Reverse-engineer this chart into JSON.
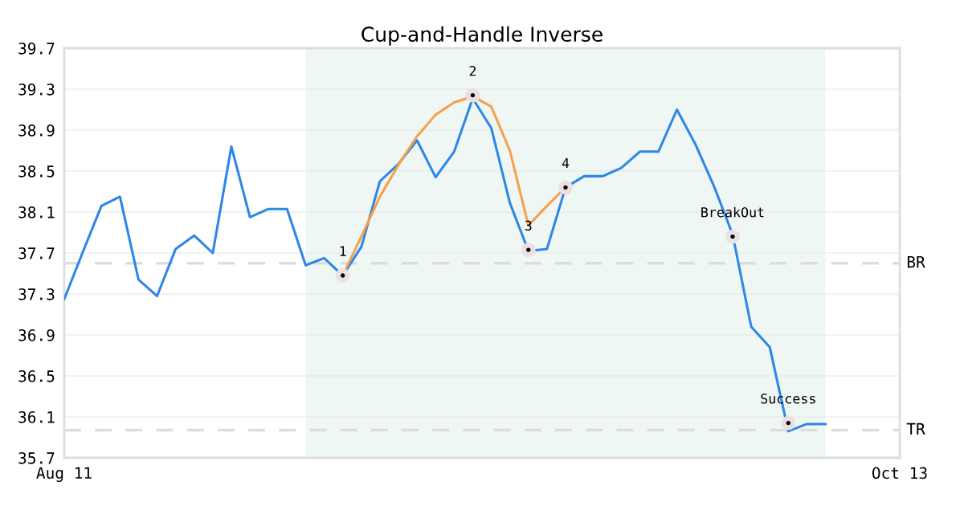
{
  "chart_data": {
    "type": "line",
    "title": "Cup-and-Handle Inverse",
    "categories": [
      "Aug 11",
      null,
      null,
      null,
      null,
      null,
      null,
      null,
      null,
      null,
      null,
      null,
      null,
      null,
      null,
      null,
      null,
      null,
      null,
      null,
      null,
      null,
      null,
      null,
      null,
      null,
      null,
      null,
      null,
      null,
      null,
      null,
      null,
      null,
      null,
      null,
      null,
      null,
      null,
      null,
      null,
      null,
      null,
      null,
      null,
      "Oct 13"
    ],
    "series": [
      {
        "color": "#2e86e6",
        "values": [
          37.25,
          37.71,
          38.16,
          38.25,
          37.44,
          37.28,
          37.74,
          37.87,
          37.7,
          38.74,
          38.05,
          38.13,
          38.13,
          37.58,
          37.65,
          37.48,
          37.76,
          38.4,
          38.57,
          38.8,
          38.44,
          38.69,
          39.21,
          38.92,
          38.19,
          37.72,
          37.74,
          38.34,
          38.45,
          38.45,
          38.53,
          38.69,
          38.69,
          39.1,
          38.76,
          38.35,
          37.88,
          36.98,
          36.78,
          35.96,
          36.03,
          36.03,
          null,
          null,
          null,
          null
        ]
      },
      {
        "color": "#f7a04b",
        "values": [
          null,
          null,
          null,
          null,
          null,
          null,
          null,
          null,
          null,
          null,
          null,
          null,
          null,
          null,
          null,
          37.48,
          37.86,
          38.25,
          38.56,
          38.84,
          39.05,
          39.17,
          39.23,
          39.13,
          38.7,
          37.97,
          38.16,
          38.34,
          null,
          null,
          null,
          null,
          null,
          null,
          null,
          null,
          null,
          null,
          null,
          null,
          null,
          null,
          null,
          null,
          null,
          null
        ]
      },
      {
        "type": "scatter",
        "marker": "circle",
        "color": "#000000",
        "values": [
          null,
          null,
          null,
          null,
          null,
          null,
          null,
          null,
          null,
          null,
          null,
          null,
          null,
          null,
          null,
          37.48,
          null,
          null,
          null,
          null,
          null,
          null,
          39.24,
          null,
          null,
          37.73,
          null,
          38.34,
          null,
          null,
          null,
          null,
          null,
          null,
          null,
          null,
          37.86,
          null,
          null,
          36.04,
          null,
          null,
          null,
          null,
          null,
          null
        ]
      }
    ],
    "annotations": [
      {
        "text": "1",
        "y": 37.48
      },
      {
        "text": "2",
        "y": 39.24
      },
      {
        "text": "3",
        "y": 37.73
      },
      {
        "text": "4",
        "y": 38.34
      },
      {
        "text": "BreakOut",
        "y": 37.86
      },
      {
        "text": "Success",
        "y": 36.04
      }
    ],
    "ref_lines": [
      {
        "axis": "y",
        "value": 37.6,
        "label": "BR",
        "color": "#dddddd",
        "line_style": "dashed"
      },
      {
        "axis": "y",
        "value": 35.97,
        "label": "TR",
        "color": "#dddddd",
        "line_style": "dashed"
      }
    ],
    "ylim": [
      35.7,
      39.7
    ],
    "yticks": [
      35.7,
      36.1,
      36.5,
      36.9,
      37.3,
      37.7,
      38.1,
      38.5,
      38.9,
      39.3,
      39.7
    ],
    "grid": "y",
    "legend": false,
    "line_style": "solid"
  }
}
